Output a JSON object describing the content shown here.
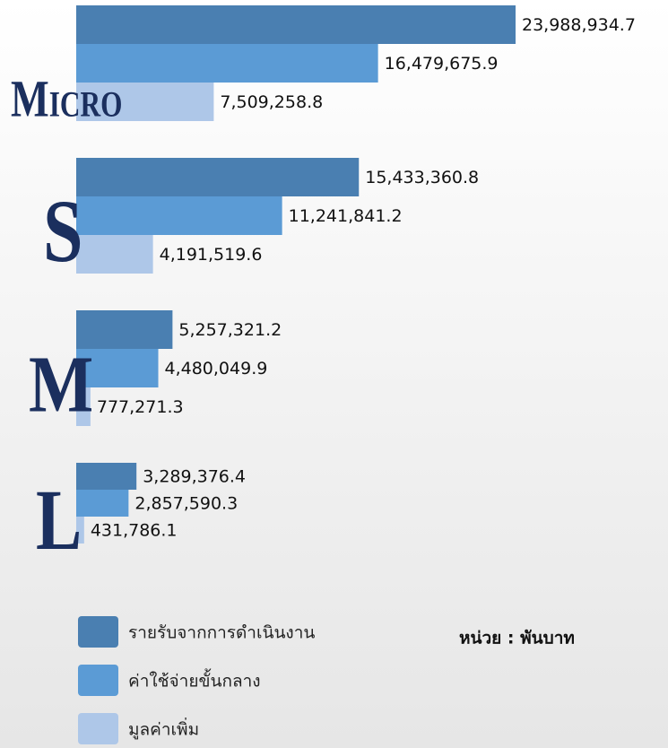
{
  "chart_data": {
    "type": "bar",
    "orientation": "horizontal",
    "categories": [
      "Micro",
      "S",
      "M",
      "L"
    ],
    "series": [
      {
        "name": "รายรับจากการดำเนินงาน",
        "color": "#4a7fb1",
        "values": [
          23988934.7,
          15433360.8,
          5257321.2,
          3289376.4
        ],
        "value_labels": [
          "23,988,934.7",
          "15,433,360.8",
          "5,257,321.2",
          "3,289,376.4"
        ]
      },
      {
        "name": "ค่าใช้จ่ายขั้นกลาง",
        "color": "#5b9bd5",
        "values": [
          16479675.9,
          11241841.2,
          4480049.9,
          2857590.3
        ],
        "value_labels": [
          "16,479,675.9",
          "11,241,841.2",
          "4,480,049.9",
          "2,857,590.3"
        ]
      },
      {
        "name": "มูลค่าเพิ่ม",
        "color": "#aec7e8",
        "values": [
          7509258.8,
          4191519.6,
          777271.3,
          431786.1
        ],
        "value_labels": [
          "7,509,258.8",
          "4,191,519.6",
          "777,271.3",
          "431,786.1"
        ]
      }
    ],
    "unit_note": "หน่วย : พันบาท"
  }
}
